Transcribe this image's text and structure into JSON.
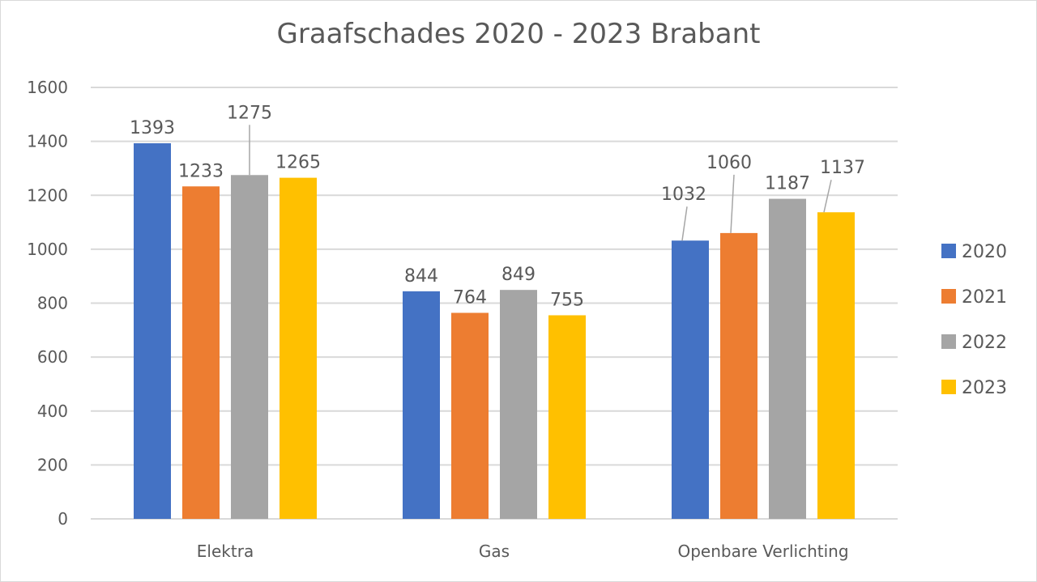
{
  "chart_data": {
    "type": "bar",
    "title": "Graafschades 2020 - 2023 Brabant",
    "categories": [
      "Elektra",
      "Gas",
      "Openbare Verlichting"
    ],
    "series": [
      {
        "name": "2020",
        "color": "#4472C4",
        "values": [
          1393,
          844,
          1032
        ]
      },
      {
        "name": "2021",
        "color": "#ED7D31",
        "values": [
          1233,
          764,
          1060
        ]
      },
      {
        "name": "2022",
        "color": "#A5A5A5",
        "values": [
          1275,
          849,
          1187
        ]
      },
      {
        "name": "2023",
        "color": "#FFC000",
        "values": [
          1265,
          755,
          1137
        ]
      }
    ],
    "yticks": [
      0,
      200,
      400,
      600,
      800,
      1000,
      1200,
      1400,
      1600
    ],
    "ylim": [
      0,
      1600
    ],
    "xlabel": "",
    "ylabel": "",
    "grid": true,
    "legend": "right",
    "data_labels": true
  }
}
